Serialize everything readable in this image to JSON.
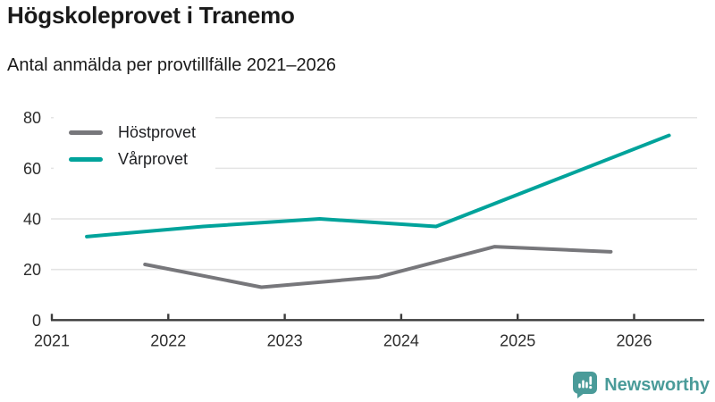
{
  "header": {
    "title": "Högskoleprovet i Tranemo",
    "subtitle": "Antal anmälda per provtillfälle 2021–2026"
  },
  "chart_data": {
    "type": "line",
    "title": "Högskoleprovet i Tranemo",
    "subtitle": "Antal anmälda per provtillfälle 2021–2026",
    "xlabel": "",
    "ylabel": "",
    "xlim": [
      2021,
      2026.65
    ],
    "ylim": [
      0,
      80
    ],
    "xticks": [
      2021,
      2022,
      2023,
      2024,
      2025,
      2026
    ],
    "yticks": [
      0,
      20,
      40,
      60,
      80
    ],
    "grid": "horizontal",
    "legend_position": "top-left-inside",
    "series": [
      {
        "name": "Höstprovet",
        "color": "#77777b",
        "x": [
          2021.8,
          2022.8,
          2023.8,
          2024.8,
          2025.8
        ],
        "values": [
          22,
          13,
          17,
          29,
          27
        ]
      },
      {
        "name": "Vårprovet",
        "color": "#00a39b",
        "x": [
          2021.3,
          2022.3,
          2023.3,
          2024.3,
          2025.3,
          2026.3
        ],
        "values": [
          33,
          37,
          40,
          37,
          55,
          73
        ]
      }
    ]
  },
  "branding": {
    "label": "Newsworthy",
    "color": "#4a9b99",
    "icon": "newsworthy-speech-bubble-bar-chart-icon"
  }
}
